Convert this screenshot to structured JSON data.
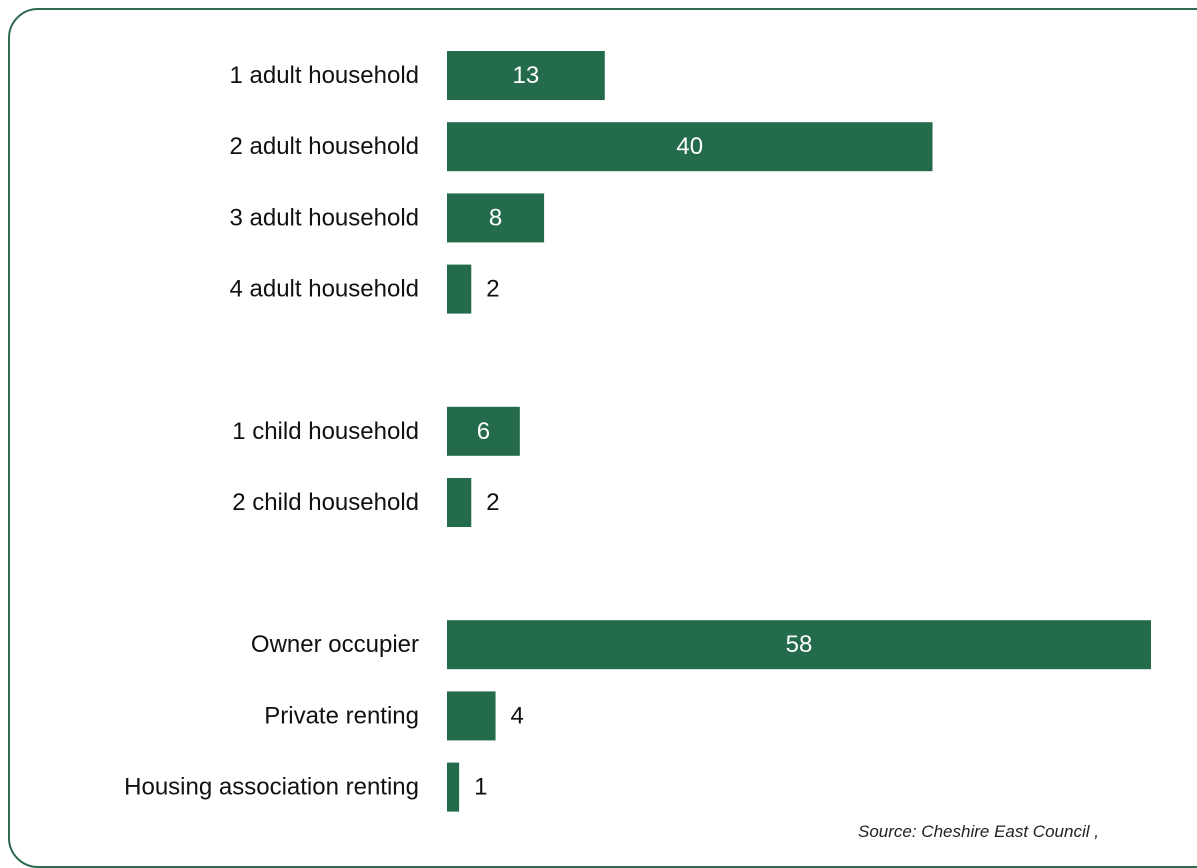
{
  "chart_data": {
    "type": "bar",
    "orientation": "horizontal",
    "groups": [
      {
        "categories": [
          "1 adult household",
          "2 adult household",
          "3 adult household",
          "4 adult household"
        ],
        "values": [
          13,
          40,
          8,
          2
        ]
      },
      {
        "categories": [
          "1 child household",
          "2 child household"
        ],
        "values": [
          6,
          2
        ]
      },
      {
        "categories": [
          "Owner occupier",
          "Private renting",
          "Housing association renting"
        ],
        "values": [
          58,
          4,
          1
        ]
      }
    ],
    "bar_color": "#236b4b",
    "data_labels": true,
    "xlim": [
      0,
      58
    ],
    "grid": false,
    "legend": false
  },
  "source": "Source: Cheshire East Council ,"
}
